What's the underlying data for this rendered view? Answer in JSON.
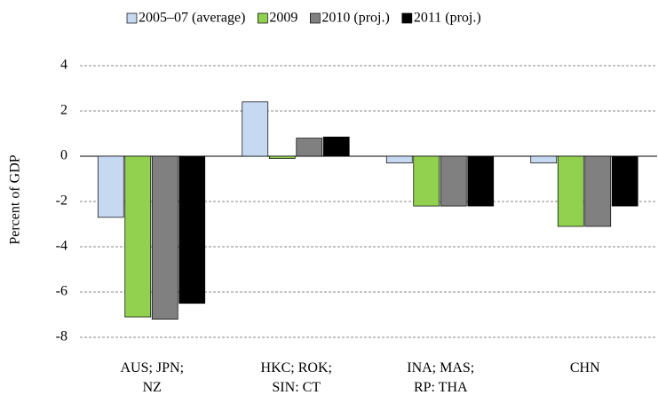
{
  "chart_data": {
    "type": "bar",
    "ylabel": "Percent of GDP",
    "categories": [
      "AUS; JPN; NZ",
      "HKC; ROK; SIN: CT",
      "INA; MAS; RP: THA",
      "CHN"
    ],
    "series": [
      {
        "name": "2005–07 (average)",
        "color": "#c6d9f1",
        "values": [
          -2.7,
          2.4,
          -0.3,
          -0.3
        ]
      },
      {
        "name": "2009",
        "color": "#92d050",
        "values": [
          -7.1,
          -0.1,
          -2.2,
          -3.1
        ]
      },
      {
        "name": "2010 (proj.)",
        "color": "#808080",
        "values": [
          -7.2,
          0.8,
          -2.2,
          -3.1
        ]
      },
      {
        "name": "2011 (proj.)",
        "color": "#000000",
        "values": [
          -6.5,
          0.85,
          -2.2,
          -2.2
        ]
      }
    ],
    "ylim": [
      -8.8,
      4.6
    ],
    "yticks": [
      -8,
      -6,
      -4,
      -2,
      0,
      2,
      4
    ],
    "grid": true,
    "legend": "top"
  }
}
